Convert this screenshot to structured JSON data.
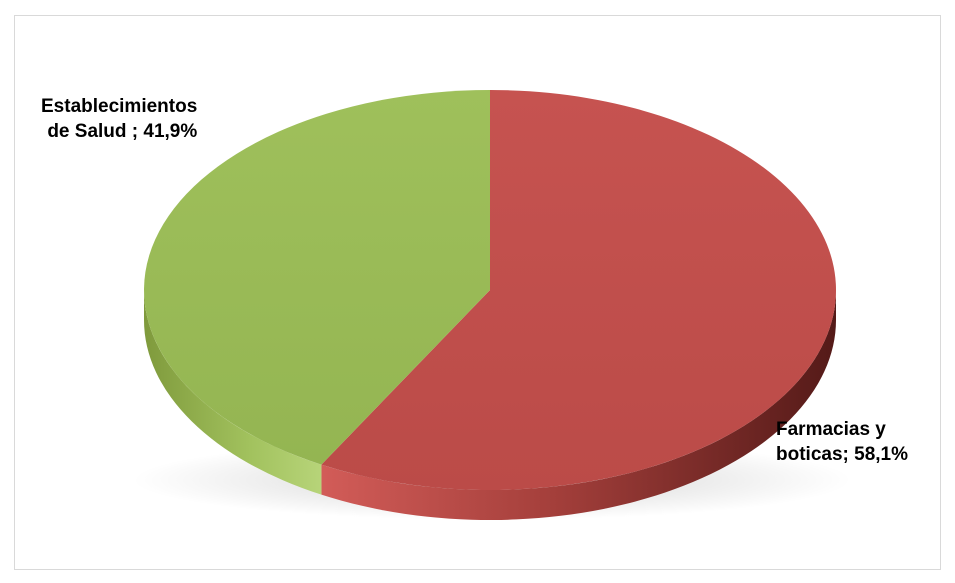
{
  "chart_data": {
    "type": "pie",
    "style": "3d",
    "slices": [
      {
        "label_line1": "Farmacias y",
        "label_line2": "boticas; 58,1%",
        "value": 58.1,
        "color": "#c0504d"
      },
      {
        "label_line1": "Establecimientos",
        "label_line2": "de Salud ; 41,9%",
        "value": 41.9,
        "color": "#9bbb59"
      }
    ],
    "legend": "none"
  }
}
